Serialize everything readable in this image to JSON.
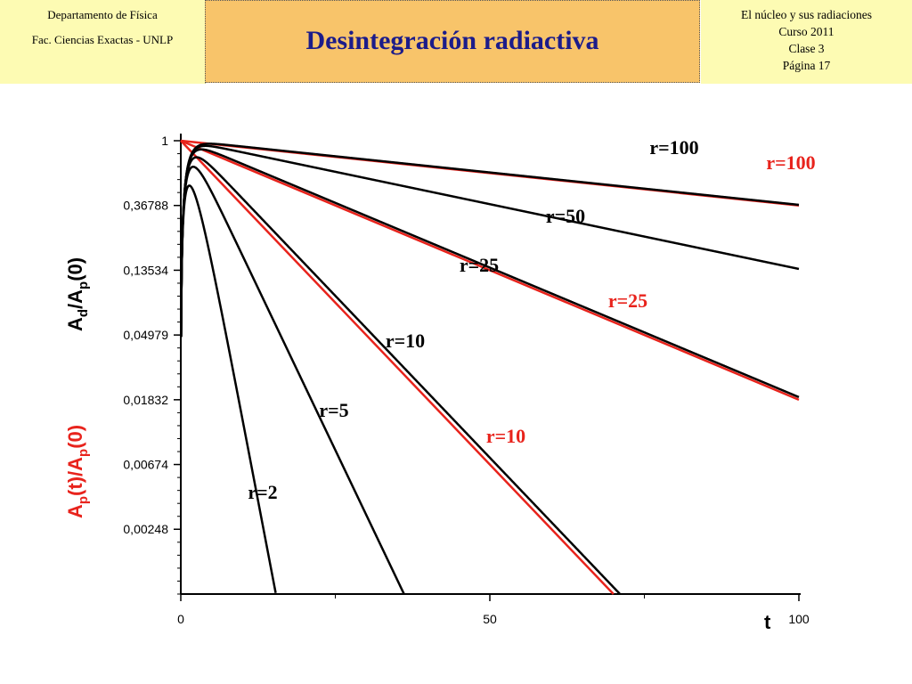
{
  "header": {
    "left": [
      "Departamento de Física",
      "Fac. Ciencias Exactas - UNLP"
    ],
    "title": "Desintegración radiactiva",
    "right": [
      "El núcleo y sus radiaciones",
      "Curso 2011",
      "Clase 3",
      "Página 17"
    ]
  },
  "colors": {
    "daughter": "#000000",
    "parent": "#e8231c",
    "title": "#1c1c8a",
    "title_bg": "#f8c46a",
    "side_bg": "#fdfbb3"
  },
  "chart_data": {
    "type": "line",
    "title": "",
    "xlabel": "t",
    "ylabel_daughter": {
      "main": "A",
      "sub1": "d",
      "mid": "/A",
      "sub2": "p",
      "tail": "(0)"
    },
    "ylabel_parent": {
      "main": "A",
      "sub1": "p",
      "mid": "(t)/A",
      "sub2": "p",
      "tail": "(0)"
    },
    "xlim": [
      0,
      100
    ],
    "ylim_ln": [
      -7,
      0
    ],
    "y_scale": "log",
    "xticks": [
      0,
      50,
      100
    ],
    "yticks": [
      {
        "value": 1,
        "label": "1"
      },
      {
        "value": 0.36788,
        "label": "0,36788"
      },
      {
        "value": 0.13534,
        "label": "0,13534"
      },
      {
        "value": 0.04979,
        "label": "0,04979"
      },
      {
        "value": 0.01832,
        "label": "0,01832"
      },
      {
        "value": 0.00674,
        "label": "0,00674"
      },
      {
        "value": 0.00248,
        "label": "0,00248"
      }
    ],
    "daughter_series": [
      {
        "name": "r=2",
        "r": 2,
        "label": "r=2"
      },
      {
        "name": "r=5",
        "r": 5,
        "label": "r=5"
      },
      {
        "name": "r=10",
        "r": 10,
        "label": "r=10"
      },
      {
        "name": "r=25",
        "r": 25,
        "label": "r=25"
      },
      {
        "name": "r=50",
        "r": 50,
        "label": "r=50"
      },
      {
        "name": "r=100",
        "r": 100,
        "label": "r=100"
      }
    ],
    "parent_series": [
      {
        "name": "r=10",
        "r": 10,
        "label": "r=10"
      },
      {
        "name": "r=25",
        "r": 25,
        "label": "r=25"
      },
      {
        "name": "r=100",
        "r": 100,
        "label": "r=100"
      }
    ]
  }
}
